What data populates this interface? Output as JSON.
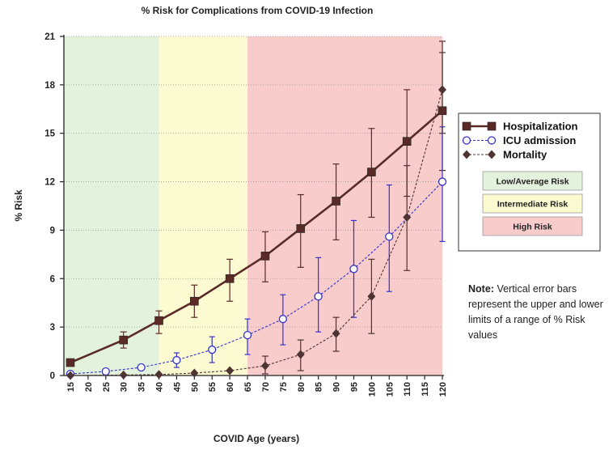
{
  "chart_data": {
    "type": "line",
    "title": "% Risk for Complications from COVID-19 Infection",
    "xlabel": "COVID Age (years)",
    "ylabel": "% Risk",
    "xlim": [
      15,
      120
    ],
    "ylim": [
      0,
      21
    ],
    "x_ticks": [
      15,
      20,
      25,
      30,
      35,
      40,
      45,
      50,
      55,
      60,
      65,
      70,
      75,
      80,
      85,
      90,
      95,
      100,
      105,
      110,
      115,
      120
    ],
    "y_ticks": [
      0,
      3,
      6,
      9,
      12,
      15,
      18,
      21
    ],
    "grid": "horizontal dotted",
    "zones": [
      {
        "label": "Low/Average Risk",
        "from": 15,
        "to": 40,
        "color": "#e3f2dc"
      },
      {
        "label": "Intermediate Risk",
        "from": 40,
        "to": 65,
        "color": "#fbfad0"
      },
      {
        "label": "High Risk",
        "from": 65,
        "to": 120,
        "color": "#f9cccc"
      }
    ],
    "series": [
      {
        "name": "Hospitalization",
        "color": "#5a2a26",
        "marker": "square",
        "line": "solid",
        "points": [
          {
            "x": 15,
            "y": 0.8
          },
          {
            "x": 30,
            "y": 2.2,
            "lo": 1.7,
            "hi": 2.7
          },
          {
            "x": 40,
            "y": 3.4,
            "lo": 2.6,
            "hi": 4.0
          },
          {
            "x": 50,
            "y": 4.6,
            "lo": 3.6,
            "hi": 5.6
          },
          {
            "x": 60,
            "y": 6.0,
            "lo": 4.6,
            "hi": 7.2
          },
          {
            "x": 70,
            "y": 7.4,
            "lo": 5.8,
            "hi": 8.9
          },
          {
            "x": 80,
            "y": 9.1,
            "lo": 6.7,
            "hi": 11.2
          },
          {
            "x": 90,
            "y": 10.8,
            "lo": 8.4,
            "hi": 13.1
          },
          {
            "x": 100,
            "y": 12.6,
            "lo": 9.8,
            "hi": 15.3
          },
          {
            "x": 110,
            "y": 14.5,
            "lo": 11.1,
            "hi": 17.7
          },
          {
            "x": 120,
            "y": 16.4,
            "lo": 12.7,
            "hi": 20.7
          }
        ]
      },
      {
        "name": "ICU admission",
        "color": "#3333cc",
        "marker": "open-circle",
        "line": "dashed",
        "points": [
          {
            "x": 15,
            "y": 0.1
          },
          {
            "x": 25,
            "y": 0.25
          },
          {
            "x": 35,
            "y": 0.5
          },
          {
            "x": 45,
            "y": 0.95,
            "lo": 0.5,
            "hi": 1.4
          },
          {
            "x": 55,
            "y": 1.6,
            "lo": 0.8,
            "hi": 2.4
          },
          {
            "x": 65,
            "y": 2.5,
            "lo": 1.3,
            "hi": 3.5
          },
          {
            "x": 75,
            "y": 3.5,
            "lo": 1.9,
            "hi": 5.0
          },
          {
            "x": 85,
            "y": 4.9,
            "lo": 2.7,
            "hi": 7.3
          },
          {
            "x": 95,
            "y": 6.6,
            "lo": 3.6,
            "hi": 9.6
          },
          {
            "x": 105,
            "y": 8.6,
            "lo": 5.2,
            "hi": 11.8
          },
          {
            "x": 120,
            "y": 12.0,
            "lo": 8.3,
            "hi": 15.4
          }
        ]
      },
      {
        "name": "Mortality",
        "color": "#4d3331",
        "marker": "diamond",
        "line": "dashed",
        "points": [
          {
            "x": 15,
            "y": 0.0
          },
          {
            "x": 30,
            "y": 0.03
          },
          {
            "x": 40,
            "y": 0.06
          },
          {
            "x": 50,
            "y": 0.15
          },
          {
            "x": 60,
            "y": 0.3
          },
          {
            "x": 70,
            "y": 0.6,
            "lo": 0.1,
            "hi": 1.2
          },
          {
            "x": 80,
            "y": 1.3,
            "lo": 0.3,
            "hi": 2.2
          },
          {
            "x": 90,
            "y": 2.6,
            "lo": 1.5,
            "hi": 3.6
          },
          {
            "x": 100,
            "y": 4.9,
            "lo": 2.6,
            "hi": 7.2
          },
          {
            "x": 110,
            "y": 9.8,
            "lo": 6.5,
            "hi": 13.0
          },
          {
            "x": 120,
            "y": 17.7,
            "lo": 15.0,
            "hi": 20.0
          }
        ]
      }
    ]
  },
  "note": {
    "label": "Note:",
    "text": "Vertical error bars represent the upper and lower limits of a range of % Risk values"
  }
}
